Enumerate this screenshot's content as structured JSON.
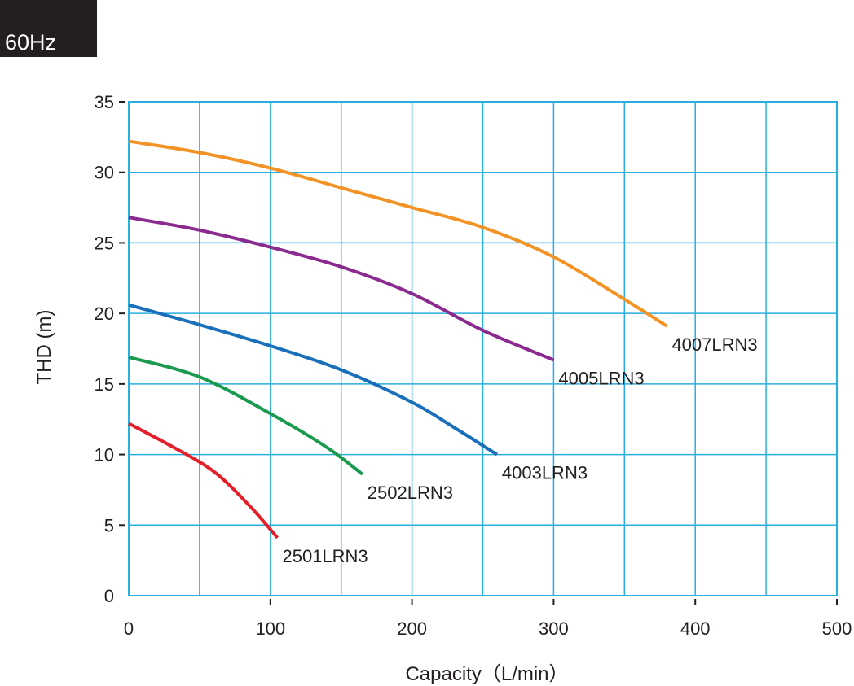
{
  "badge": {
    "label": "60Hz",
    "color": "#231f20"
  },
  "chart_data": {
    "type": "line",
    "title": "",
    "xlabel": "Capacity（L/min）",
    "ylabel": "THD (m)",
    "xlim": [
      0,
      500
    ],
    "ylim": [
      0,
      35
    ],
    "xticks": [
      0,
      100,
      200,
      300,
      400,
      500
    ],
    "yticks": [
      0,
      5,
      10,
      15,
      20,
      25,
      30,
      35
    ],
    "grid": true,
    "grid_color": "#29aee0",
    "legend": "none (labels at line ends)",
    "series": [
      {
        "name": "4007LRN3",
        "color": "#f39325",
        "x": [
          0,
          50,
          100,
          150,
          200,
          250,
          300,
          350,
          380
        ],
        "y": [
          32.2,
          31.4,
          30.3,
          28.9,
          27.5,
          26.1,
          24.0,
          21.0,
          19.1
        ]
      },
      {
        "name": "4005LRN3",
        "color": "#8b2a8e",
        "x": [
          0,
          50,
          100,
          150,
          200,
          250,
          300
        ],
        "y": [
          26.8,
          25.9,
          24.7,
          23.3,
          21.4,
          18.8,
          16.7
        ]
      },
      {
        "name": "4003LRN3",
        "color": "#1a6fba",
        "x": [
          0,
          50,
          100,
          150,
          200,
          230,
          260
        ],
        "y": [
          20.6,
          19.2,
          17.7,
          16.0,
          13.7,
          11.9,
          10.0
        ]
      },
      {
        "name": "2502LRN3",
        "color": "#1a9a4e",
        "x": [
          0,
          50,
          100,
          140,
          165
        ],
        "y": [
          16.9,
          15.5,
          12.9,
          10.5,
          8.6
        ]
      },
      {
        "name": "2501LRN3",
        "color": "#e3202a",
        "x": [
          0,
          30,
          60,
          85,
          105
        ],
        "y": [
          12.2,
          10.6,
          8.8,
          6.4,
          4.1
        ]
      }
    ]
  }
}
